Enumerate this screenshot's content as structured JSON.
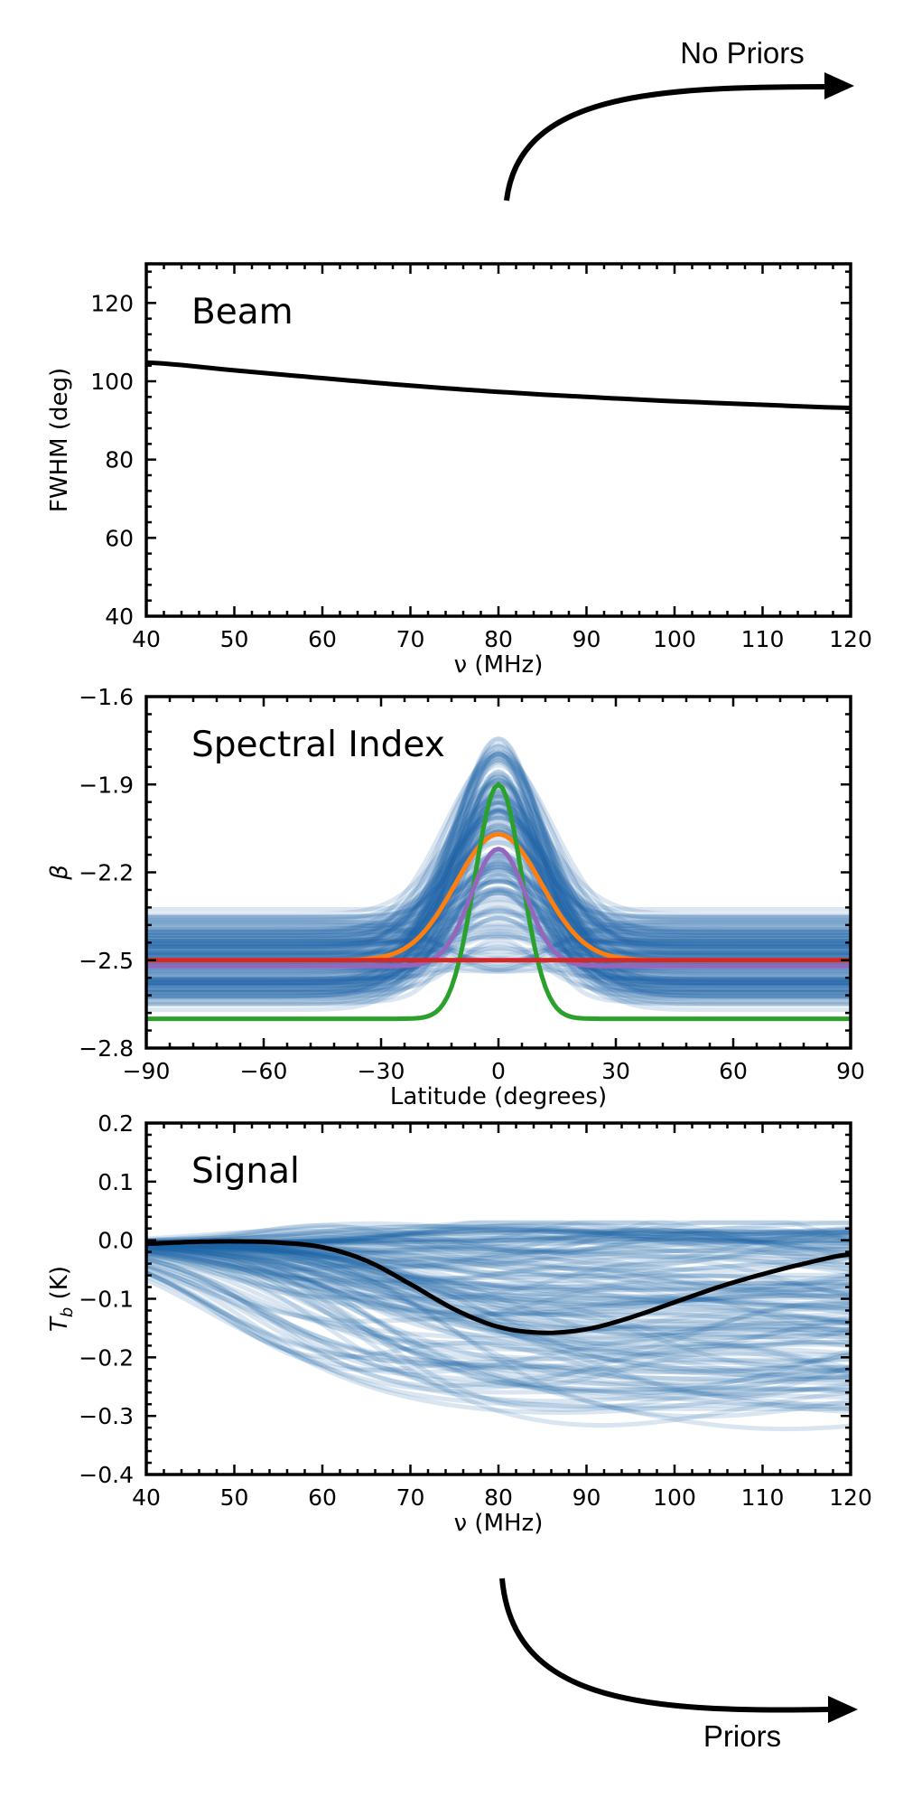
{
  "annotations": {
    "top_label": "No Priors",
    "bottom_label": "Priors"
  },
  "colors": {
    "sample_blue": "#1f63a6",
    "frame": "#000000",
    "beam_line": "#000000",
    "signal_line": "#000000",
    "orange": "#ff7f0e",
    "green": "#2ca02c",
    "red": "#d62728",
    "purple": "#9467bd"
  },
  "chart_data": [
    {
      "type": "line",
      "title": "Beam",
      "xlabel": "ν (MHz)",
      "ylabel": "FWHM (deg)",
      "xlim": [
        40,
        120
      ],
      "ylim": [
        40,
        130
      ],
      "xticks": [
        40,
        50,
        60,
        70,
        80,
        90,
        100,
        110,
        120
      ],
      "yticks": [
        40,
        60,
        80,
        100,
        120
      ],
      "xtick_labels": [
        "40",
        "50",
        "60",
        "70",
        "80",
        "90",
        "100",
        "110",
        "120"
      ],
      "ytick_labels": [
        "40",
        "60",
        "80",
        "100",
        "120"
      ],
      "series": [
        {
          "name": "beam FWHM",
          "color": "#000000",
          "x": [
            40,
            50,
            60,
            70,
            80,
            90,
            100,
            110,
            120
          ],
          "y": [
            104.8,
            102.8,
            100.8,
            98.9,
            97.3,
            96.0,
            94.9,
            94.0,
            93.2
          ]
        }
      ]
    },
    {
      "type": "line",
      "title": "Spectral Index",
      "xlabel": "Latitude (degrees)",
      "ylabel": "β",
      "xlim": [
        -90,
        90
      ],
      "ylim": [
        -2.8,
        -1.6
      ],
      "xticks": [
        -90,
        -60,
        -30,
        0,
        30,
        60,
        90
      ],
      "yticks": [
        -2.8,
        -2.5,
        -2.2,
        -1.9,
        -1.6
      ],
      "xtick_labels": [
        "−90",
        "−60",
        "−30",
        "0",
        "30",
        "60",
        "90"
      ],
      "ytick_labels": [
        "−2.8",
        "−2.5",
        "−2.2",
        "−1.9",
        "−1.6"
      ],
      "samples": {
        "description": "posterior draws: Gaussian bump centred at 0 latitude",
        "count": 160,
        "baseline_range": [
          -2.69,
          -2.32
        ],
        "peak_range": [
          -2.55,
          -1.74
        ],
        "width_deg_range": [
          9,
          14
        ],
        "color": "#1f63a6"
      },
      "series": [
        {
          "name": "orange",
          "color": "#ff7f0e",
          "baseline": -2.5,
          "peak": -2.07,
          "width_deg": 11
        },
        {
          "name": "green",
          "color": "#2ca02c",
          "baseline": -2.7,
          "peak": -1.9,
          "width_deg": 6
        },
        {
          "name": "purple",
          "color": "#9467bd",
          "baseline": -2.52,
          "peak": -2.12,
          "width_deg": 7
        },
        {
          "name": "red",
          "color": "#d62728",
          "baseline": -2.5,
          "peak": -2.5,
          "width_deg": 10
        }
      ]
    },
    {
      "type": "line",
      "title": "Signal",
      "xlabel": "ν (MHz)",
      "ylabel": "T_b (K)",
      "ylabel_main": "T",
      "ylabel_sub": "b",
      "ylabel_unit": " (K)",
      "xlim": [
        40,
        120
      ],
      "ylim": [
        -0.4,
        0.2
      ],
      "xticks": [
        40,
        50,
        60,
        70,
        80,
        90,
        100,
        110,
        120
      ],
      "yticks": [
        -0.4,
        -0.3,
        -0.2,
        -0.1,
        0.0,
        0.1,
        0.2
      ],
      "xtick_labels": [
        "40",
        "50",
        "60",
        "70",
        "80",
        "90",
        "100",
        "110",
        "120"
      ],
      "ytick_labels": [
        "−0.4",
        "−0.3",
        "−0.2",
        "−0.1",
        "0.0",
        "0.1",
        "0.2"
      ],
      "samples": {
        "description": "posterior signal draws, spread from ~0.03 K to ~-0.29 K at 120 MHz",
        "count": 140,
        "color": "#1f63a6",
        "value_range_at_120": [
          -0.29,
          0.03
        ]
      },
      "series": [
        {
          "name": "true signal",
          "color": "#000000",
          "x": [
            40,
            45,
            50,
            55,
            60,
            65,
            70,
            75,
            80,
            85,
            90,
            95,
            100,
            105,
            110,
            115,
            120
          ],
          "y": [
            -0.006,
            -0.003,
            -0.002,
            -0.004,
            -0.012,
            -0.035,
            -0.075,
            -0.118,
            -0.148,
            -0.158,
            -0.152,
            -0.132,
            -0.106,
            -0.08,
            -0.058,
            -0.039,
            -0.024
          ]
        }
      ]
    }
  ]
}
